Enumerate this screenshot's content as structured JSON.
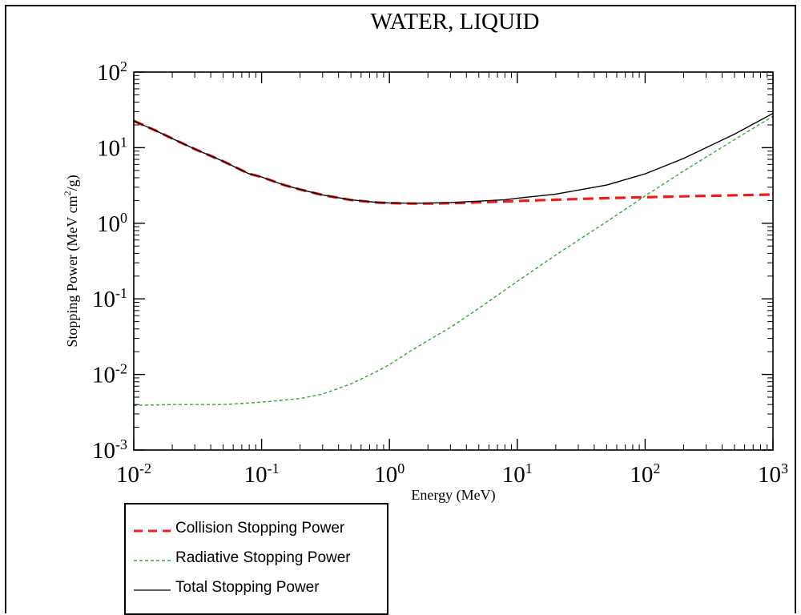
{
  "chart_data": {
    "type": "line",
    "title": "WATER, LIQUID",
    "xlabel": "Energy (MeV)",
    "ylabel": {
      "pre": "Stopping Power (MeV cm",
      "sup": "2",
      "post": "/g)"
    },
    "xscale": "log",
    "yscale": "log",
    "xlim": [
      0.01,
      1000
    ],
    "ylim": [
      0.001,
      100
    ],
    "x_ticks": [
      {
        "base": "10",
        "exp": "-2",
        "value": 0.01
      },
      {
        "base": "10",
        "exp": "-1",
        "value": 0.1
      },
      {
        "base": "10",
        "exp": "0",
        "value": 1
      },
      {
        "base": "10",
        "exp": "1",
        "value": 10
      },
      {
        "base": "10",
        "exp": "2",
        "value": 100
      },
      {
        "base": "10",
        "exp": "3",
        "value": 1000
      }
    ],
    "y_ticks": [
      {
        "base": "10",
        "exp": "-3",
        "value": 0.001
      },
      {
        "base": "10",
        "exp": "-2",
        "value": 0.01
      },
      {
        "base": "10",
        "exp": "-1",
        "value": 0.1
      },
      {
        "base": "10",
        "exp": "0",
        "value": 1
      },
      {
        "base": "10",
        "exp": "1",
        "value": 10
      },
      {
        "base": "10",
        "exp": "2",
        "value": 100
      }
    ],
    "grid": false,
    "legend_position": "bottom-left, below plot",
    "series": [
      {
        "name": "Collision Stopping Power",
        "color": "#ee1c1c",
        "style": "long-dash",
        "x": [
          0.01,
          0.015,
          0.02,
          0.03,
          0.05,
          0.08,
          0.1,
          0.15,
          0.2,
          0.3,
          0.5,
          0.8,
          1,
          1.5,
          2,
          3,
          5,
          8,
          10,
          20,
          50,
          100,
          200,
          500,
          1000
        ],
        "y": [
          22.6,
          16.7,
          13.2,
          9.6,
          6.6,
          4.5,
          4.1,
          3.2,
          2.8,
          2.36,
          2.03,
          1.88,
          1.85,
          1.82,
          1.82,
          1.84,
          1.89,
          1.94,
          1.97,
          2.05,
          2.15,
          2.21,
          2.27,
          2.34,
          2.4
        ]
      },
      {
        "name": "Radiative Stopping Power",
        "color": "#2eaa2e",
        "style": "short-dash",
        "x": [
          0.01,
          0.02,
          0.05,
          0.1,
          0.2,
          0.3,
          0.5,
          0.8,
          1,
          1.5,
          2,
          3,
          5,
          10,
          20,
          50,
          100,
          200,
          500,
          1000
        ],
        "y": [
          0.0039,
          0.004,
          0.004,
          0.0043,
          0.0048,
          0.0055,
          0.0075,
          0.011,
          0.0135,
          0.021,
          0.028,
          0.042,
          0.075,
          0.17,
          0.38,
          1.05,
          2.3,
          4.9,
          12.8,
          26.0
        ]
      },
      {
        "name": "Total Stopping Power",
        "color": "#000000",
        "style": "solid",
        "x": [
          0.01,
          0.015,
          0.02,
          0.03,
          0.05,
          0.08,
          0.1,
          0.15,
          0.2,
          0.3,
          0.5,
          0.8,
          1,
          1.5,
          2,
          3,
          5,
          8,
          10,
          20,
          50,
          100,
          200,
          500,
          1000
        ],
        "y": [
          22.6,
          16.7,
          13.2,
          9.6,
          6.6,
          4.5,
          4.1,
          3.2,
          2.8,
          2.37,
          2.04,
          1.89,
          1.86,
          1.84,
          1.85,
          1.88,
          1.96,
          2.05,
          2.14,
          2.43,
          3.2,
          4.5,
          7.2,
          15.1,
          28.4
        ]
      }
    ]
  }
}
